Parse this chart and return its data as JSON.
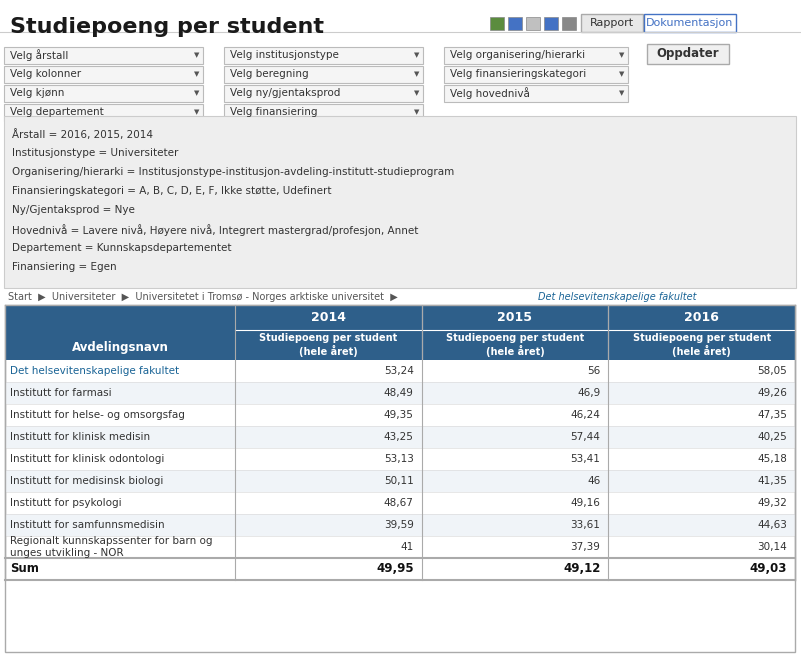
{
  "title": "Studiepoeng per student",
  "bg_color": "#ffffff",
  "filter_bg": "#f0f0f0",
  "filter_border": "#cccccc",
  "filter_rows": [
    [
      "Velg årstall",
      "Velg institusjonstype",
      "Velg organisering/hierarki"
    ],
    [
      "Velg kolonner",
      "Velg beregning",
      "Velg finansieringskategori"
    ],
    [
      "Velg kjønn",
      "Velg ny/gjentaksprod",
      "Velg hovednivå"
    ],
    [
      "Velg departement",
      "Velg finansiering",
      null
    ]
  ],
  "oppdater_label": "Oppdater",
  "rapport_label": "Rapport",
  "dokumentasjon_label": "Dokumentasjon",
  "params_bg": "#eeeeee",
  "params_lines": [
    "Årstall = 2016, 2015, 2014",
    "Institusjonstype = Universiteter",
    "Organisering/hierarki = Institusjonstype-institusjon-avdeling-institutt-studieprogram",
    "Finansieringskategori = A, B, C, D, E, F, Ikke støtte, Udefinert",
    "Ny/Gjentaksprod = Nye",
    "Hovednivå = Lavere nivå, Høyere nivå, Integrert mastergrad/profesjon, Annet",
    "Departement = Kunnskapsdepartementet",
    "Finansiering = Egen"
  ],
  "breadcrumb": "Start  ▶  Universiteter  ▶  Universitetet i Tromsø - Norges arktiske universitet  ▶  Det helsevitenskapelige fakultet",
  "breadcrumb_link": "Det helsevitenskapelige fakultet",
  "table_header_bg": "#2e5f8a",
  "table_header_color": "#ffffff",
  "table_subheader_bg": "#2e5f8a",
  "table_row_alt": "#f5f5f5",
  "table_row_normal": "#ffffff",
  "table_link_color": "#1a6496",
  "col_headers": [
    "2014",
    "2015",
    "2016"
  ],
  "col_subheaders": [
    "Studiepoeng per student\n(hele året)",
    "Studiepoeng per student\n(hele året)",
    "Studiepoeng per student\n(hele året)"
  ],
  "row_header": "Avdelingsnavn",
  "rows": [
    [
      "Det helsevitenskapelige fakultet",
      "53,24",
      "56",
      "58,05"
    ],
    [
      "Institutt for farmasi",
      "48,49",
      "46,9",
      "49,26"
    ],
    [
      "Institutt for helse- og omsorgsfag",
      "49,35",
      "46,24",
      "47,35"
    ],
    [
      "Institutt for klinisk medisin",
      "43,25",
      "57,44",
      "40,25"
    ],
    [
      "Institutt for klinisk odontologi",
      "53,13",
      "53,41",
      "45,18"
    ],
    [
      "Institutt for medisinsk biologi",
      "50,11",
      "46",
      "41,35"
    ],
    [
      "Institutt for psykologi",
      "48,67",
      "49,16",
      "49,32"
    ],
    [
      "Institutt for samfunnsmedisin",
      "39,59",
      "33,61",
      "44,63"
    ],
    [
      "Regionalt kunnskapssenter for barn og\nunges utvikling - NOR",
      "41",
      "37,39",
      "30,14"
    ]
  ],
  "sum_row": [
    "Sum",
    "49,95",
    "49,12",
    "49,03"
  ]
}
